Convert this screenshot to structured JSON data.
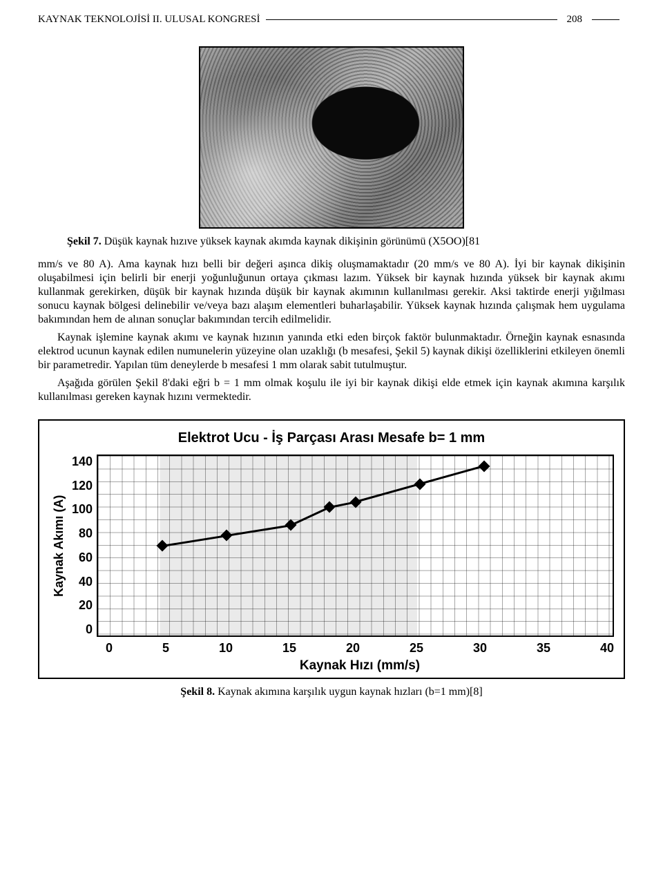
{
  "header": {
    "left": "KAYNAK TEKNOLOJİSİ II. ULUSAL KONGRESİ",
    "page_number": "208"
  },
  "figure7": {
    "caption_bold": "Şekil 7.",
    "caption_rest": " Düşük kaynak hızıve yüksek kaynak akımda kaynak dikişinin görünümü  (X5OO)[81"
  },
  "paragraphs": {
    "p1": "mm/s ve 80 A). Ama kaynak hızı belli bir değeri aşınca dikiş oluşmamaktadır (20 mm/s ve 80 A). İyi bir kaynak dikişinin oluşabilmesi için belirli bir enerji yoğunluğunun ortaya çıkması lazım. Yüksek bir kaynak hızında yüksek bir kaynak akımı kullanmak gerekirken, düşük bir kaynak hızında düşük bir kaynak akımının kullanılması gerekir. Aksi taktirde enerji yığılması sonucu kaynak bölgesi delinebilir ve/veya bazı alaşım elementleri buharlaşabilir. Yüksek kaynak hızında çalışmak hem uygulama bakımından hem de alınan sonuçlar bakımından tercih edilmelidir.",
    "p2": "Kaynak işlemine kaynak akımı ve kaynak hızının yanında etki eden birçok faktör bulunmaktadır. Örneğin kaynak esnasında elektrod ucunun kaynak edilen numunelerin yüzeyine olan uzaklığı (b mesafesi, Şekil 5) kaynak dikişi özelliklerini etkileyen önemli bir parametredir. Yapılan tüm deneylerde b mesafesi 1 mm olarak sabit tutulmuştur.",
    "p3": "Aşağıda görülen Şekil 8'daki eğri b = 1 mm olmak koşulu ile iyi bir kaynak dikişi elde etmek için kaynak akımına karşılık kullanılması gereken kaynak hızını vermektedir."
  },
  "chart": {
    "type": "line",
    "title": "Elektrot Ucu - İş Parçası Arası Mesafe b= 1 mm",
    "x_label": "Kaynak Hızı (mm/s)",
    "y_label": "Kaynak Akımı (A)",
    "xlim": [
      0,
      40
    ],
    "ylim": [
      0,
      140
    ],
    "xtick_step": 5,
    "ytick_step": 20,
    "xticks": [
      "0",
      "5",
      "10",
      "15",
      "20",
      "25",
      "30",
      "35",
      "40"
    ],
    "yticks": [
      "140",
      "120",
      "100",
      "80",
      "60",
      "40",
      "20",
      "0"
    ],
    "grid_color": "#8a8a8a",
    "background_color": "#ffffff",
    "shaded_band_x": [
      5,
      25
    ],
    "shaded_color": "#eaeaea",
    "line_color": "#000000",
    "line_width": 3,
    "marker_style": "diamond",
    "marker_size": 12,
    "marker_color": "#000000",
    "title_fontsize": 20,
    "label_fontsize": 19,
    "tick_fontsize": 18,
    "font_family": "Arial",
    "font_weight": "bold",
    "points": [
      {
        "x": 5,
        "y": 70
      },
      {
        "x": 10,
        "y": 78
      },
      {
        "x": 15,
        "y": 86
      },
      {
        "x": 18,
        "y": 100
      },
      {
        "x": 20,
        "y": 104
      },
      {
        "x": 25,
        "y": 118
      },
      {
        "x": 30,
        "y": 132
      }
    ]
  },
  "figure8": {
    "caption_bold": "Şekil 8.",
    "caption_rest": " Kaynak akımına karşılık uygun kaynak hızları (b=1 mm)[8]"
  }
}
